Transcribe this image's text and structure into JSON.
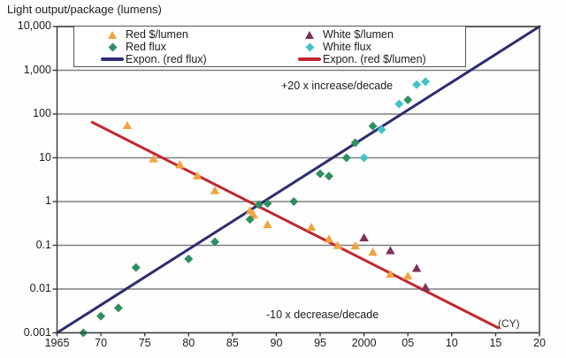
{
  "title": "Light output/package (lumens)",
  "annotations": {
    "increase": "+20 x increase/decade",
    "decrease": "-10 x decrease/decade",
    "cy_label": "(CY)"
  },
  "colors": {
    "red_dollar": "#F2A340",
    "red_flux": "#2E8F63",
    "white_dollar": "#7E3159",
    "white_flux": "#3FC3C8",
    "expon_red_flux": "#2D2D70",
    "expon_red_dollar": "#C2262E",
    "gridline": "#7f7f7f",
    "axis": "#3f3f3f"
  },
  "chart_data": {
    "type": "scatter",
    "title": "Light output/package (lumens)",
    "xlabel": "(CY)",
    "ylabel": "Light output/package (lumens)",
    "xlim": [
      1965,
      2020
    ],
    "ylim": [
      0.001,
      10000
    ],
    "y_scale": "log",
    "grid": "horizontal",
    "legend_position": "top",
    "x_ticks": {
      "values": [
        1965,
        1970,
        1975,
        1980,
        1985,
        1990,
        1995,
        2000,
        2005,
        2010,
        2015,
        2020
      ],
      "labels": [
        "1965",
        "70",
        "75",
        "80",
        "85",
        "90",
        "95",
        "2000",
        "05",
        "10",
        "15",
        "20"
      ]
    },
    "y_ticks": {
      "values": [
        0.001,
        0.01,
        0.1,
        1,
        10,
        100,
        1000,
        10000
      ],
      "labels": [
        "0.001",
        "0.01",
        "0.1",
        "1",
        "10",
        "100",
        "1,000",
        "10,000"
      ]
    },
    "series": [
      {
        "name": "Red $/lumen",
        "marker": "triangle",
        "color": "#F2A340",
        "type": "scatter",
        "points": [
          [
            1973,
            55
          ],
          [
            1976,
            9.5
          ],
          [
            1979,
            7
          ],
          [
            1981,
            3.9
          ],
          [
            1983,
            1.8
          ],
          [
            1987,
            0.62
          ],
          [
            1987.4,
            0.5
          ],
          [
            1989,
            0.3
          ],
          [
            1994,
            0.26
          ],
          [
            1996,
            0.14
          ],
          [
            1997,
            0.1
          ],
          [
            1999,
            0.098
          ],
          [
            2001,
            0.07
          ],
          [
            2003,
            0.022
          ],
          [
            2005,
            0.02
          ]
        ]
      },
      {
        "name": "Red flux",
        "marker": "diamond",
        "color": "#2E8F63",
        "type": "scatter",
        "points": [
          [
            1968,
            0.001
          ],
          [
            1970,
            0.0024
          ],
          [
            1972,
            0.0037
          ],
          [
            1974,
            0.031
          ],
          [
            1980,
            0.049
          ],
          [
            1983,
            0.12
          ],
          [
            1987,
            0.39
          ],
          [
            1988,
            0.85
          ],
          [
            1989,
            0.9
          ],
          [
            1992,
            1.0
          ],
          [
            1995,
            4.3
          ],
          [
            1996,
            3.8
          ],
          [
            1998,
            10
          ],
          [
            1999,
            22
          ],
          [
            2001,
            53
          ],
          [
            2005,
            210
          ]
        ]
      },
      {
        "name": "White $/lumen",
        "marker": "triangle",
        "color": "#7E3159",
        "type": "scatter",
        "points": [
          [
            2000,
            0.15
          ],
          [
            2003,
            0.076
          ],
          [
            2006,
            0.03
          ],
          [
            2007,
            0.011
          ]
        ]
      },
      {
        "name": "White flux",
        "marker": "diamond",
        "color": "#3FC3C8",
        "type": "scatter",
        "points": [
          [
            2000,
            10
          ],
          [
            2002,
            44
          ],
          [
            2004,
            170
          ],
          [
            2006,
            470
          ],
          [
            2007,
            550
          ]
        ]
      },
      {
        "name": "Expon. (red flux)",
        "marker": "line",
        "color": "#2D2D70",
        "type": "line",
        "points": [
          [
            1965,
            0.001
          ],
          [
            2020,
            10000
          ]
        ]
      },
      {
        "name": "Expon. (red $/lumen)",
        "marker": "line",
        "color": "#C2262E",
        "type": "line",
        "points": [
          [
            1969,
            65
          ],
          [
            2015.3,
            0.0013
          ]
        ]
      }
    ]
  }
}
